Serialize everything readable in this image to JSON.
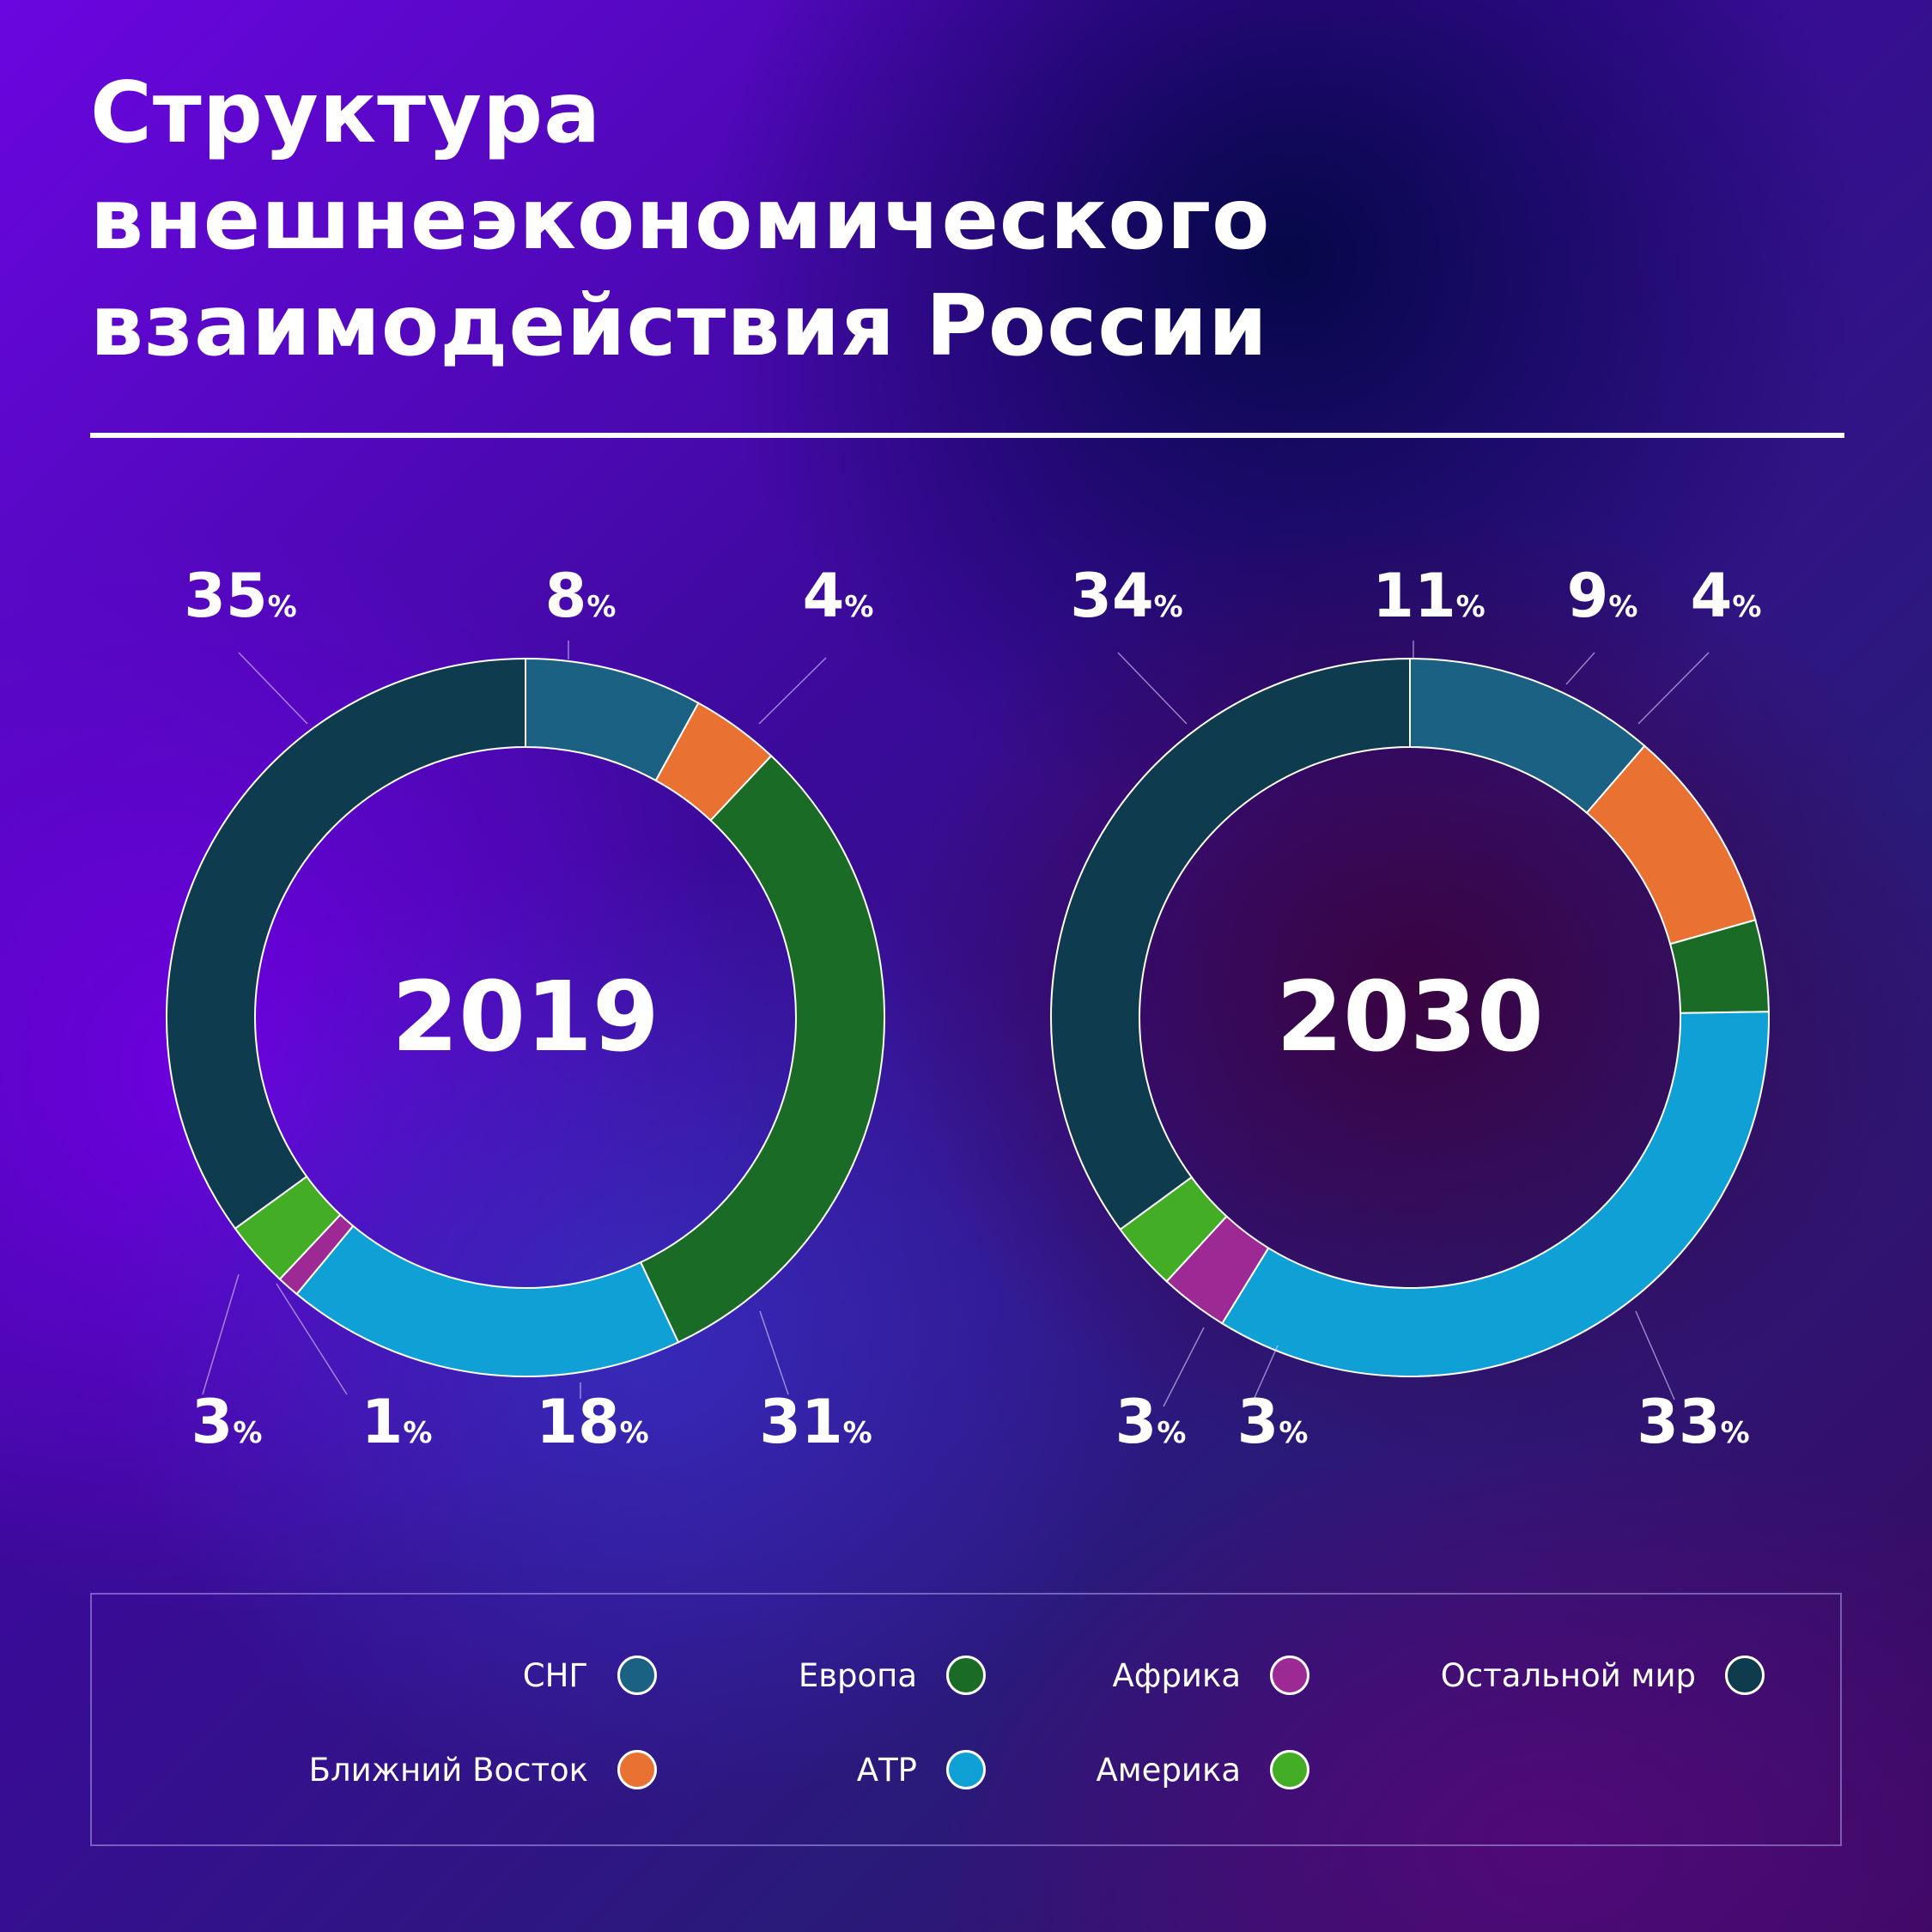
{
  "title": {
    "lines": [
      "Структура",
      "внешнеэкономического",
      "взаимодействия России"
    ]
  },
  "colors": {
    "СНГ": "#1a6183",
    "Ближний Восток": "#e97131",
    "Европа": "#1a6b26",
    "АТР": "#0fa0d6",
    "Африка": "#9d2a94",
    "Америка": "#44ad26",
    "Остальной мир": "#0f3b4e"
  },
  "legend": {
    "items": [
      {
        "label": "СНГ",
        "key": "СНГ"
      },
      {
        "label": "Европа",
        "key": "Европа"
      },
      {
        "label": "Африка",
        "key": "Африка"
      },
      {
        "label": "Остальной мир",
        "key": "Остальной мир"
      },
      {
        "label": "Ближний Восток",
        "key": "Ближний Восток"
      },
      {
        "label": "АТР",
        "key": "АТР"
      },
      {
        "label": "Америка",
        "key": "Америка"
      }
    ]
  },
  "chart_data": [
    {
      "type": "pie",
      "title": "2019",
      "unit": "%",
      "slices": [
        {
          "name": "СНГ",
          "value": 8
        },
        {
          "name": "Ближний Восток",
          "value": 4
        },
        {
          "name": "Европа",
          "value": 31
        },
        {
          "name": "АТР",
          "value": 18
        },
        {
          "name": "Африка",
          "value": 1
        },
        {
          "name": "Америка",
          "value": 3
        },
        {
          "name": "Остальной мир",
          "value": 35
        }
      ]
    },
    {
      "type": "pie",
      "title": "2030",
      "unit": "%",
      "slices": [
        {
          "name": "СНГ",
          "value": 11
        },
        {
          "name": "Ближний Восток",
          "value": 9
        },
        {
          "name": "Европа",
          "value": 4
        },
        {
          "name": "АТР",
          "value": 33
        },
        {
          "name": "Африка",
          "value": 3
        },
        {
          "name": "Америка",
          "value": 3
        },
        {
          "name": "Остальной мир",
          "value": 34
        }
      ]
    }
  ]
}
